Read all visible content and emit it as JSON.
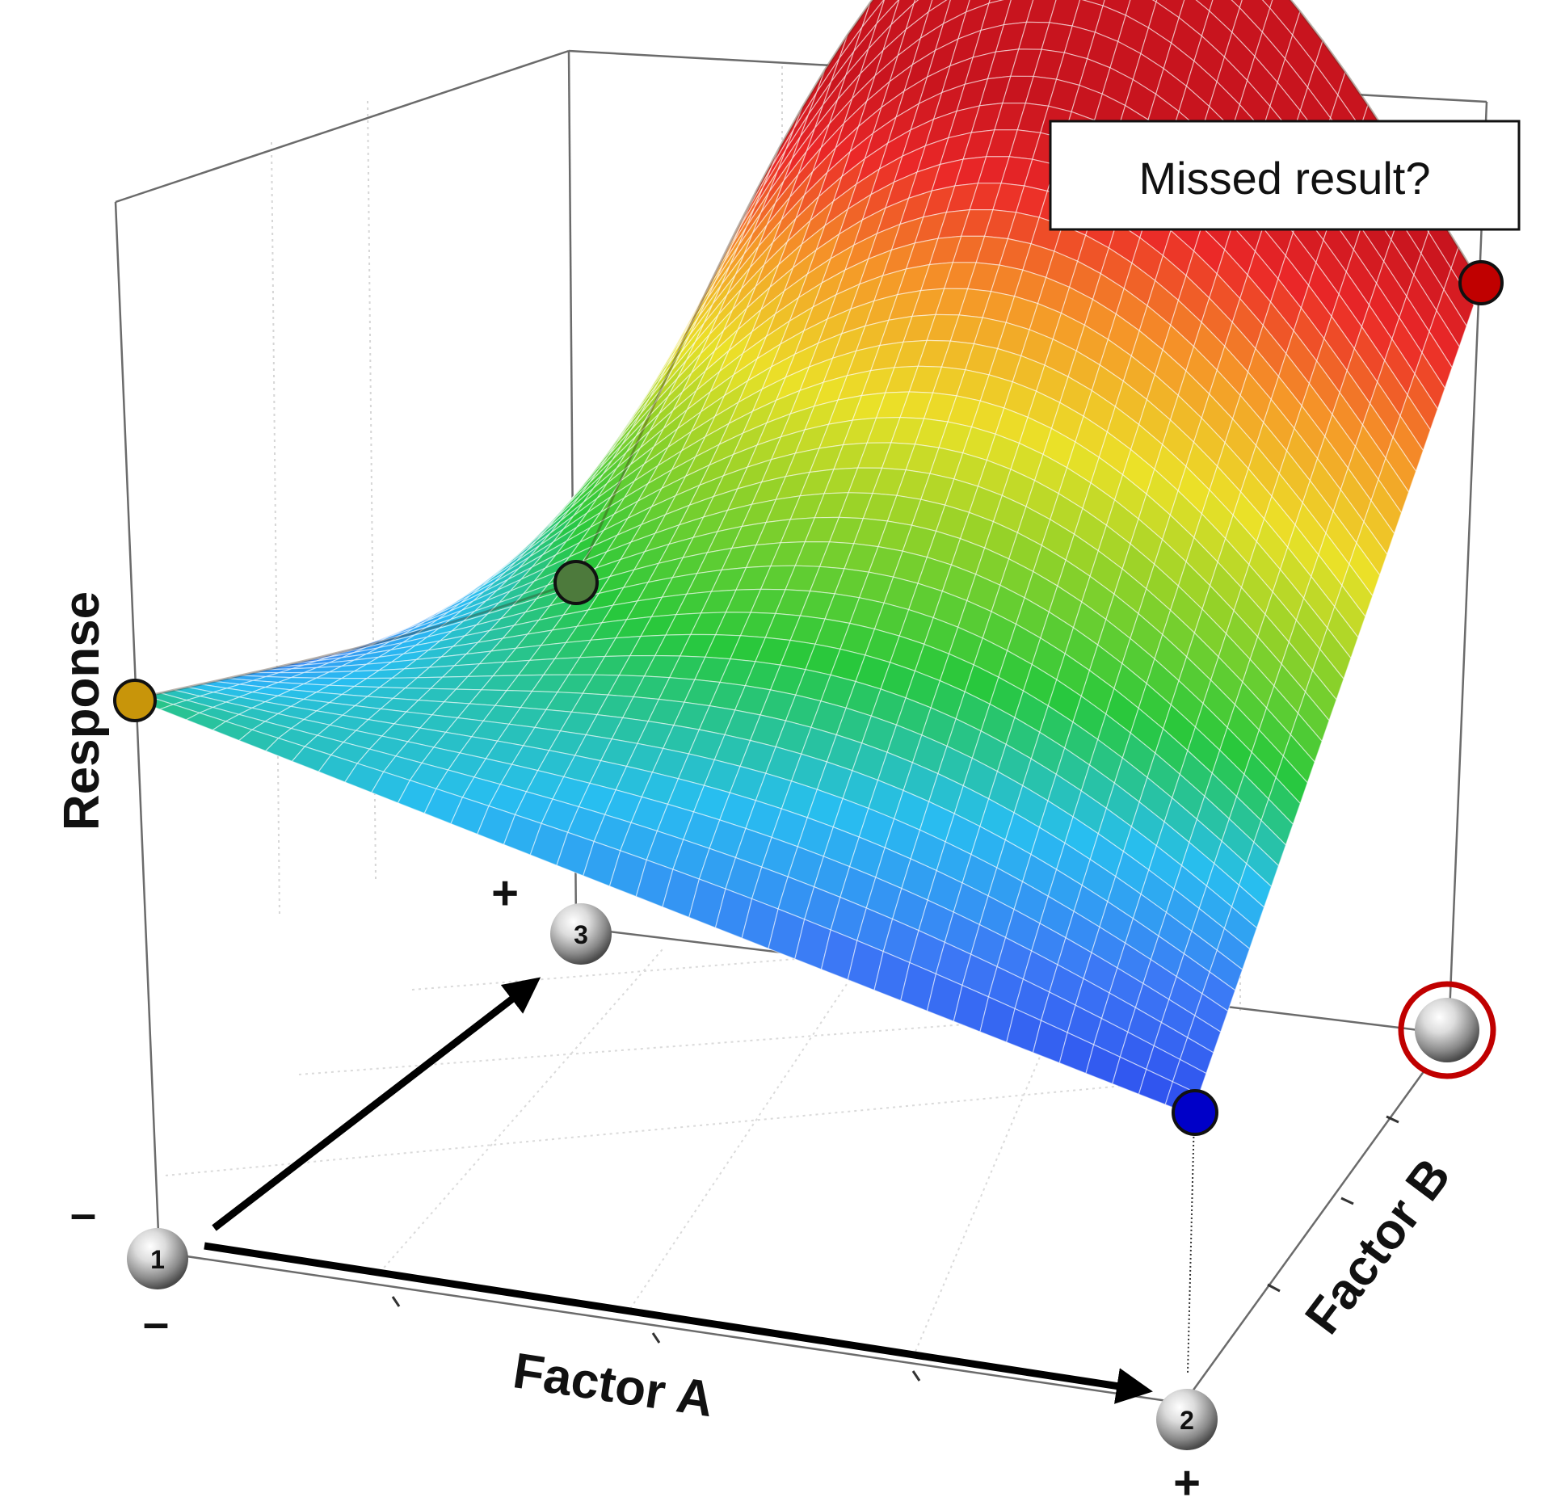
{
  "colors": {
    "point_left_face": "#c8950a",
    "point_back_left": "#4d7a3c",
    "point_top_right": "#c00000",
    "point_bottom_right": "#0000c8",
    "highlight_ring": "#c00000",
    "arrow": "#000000",
    "frame": "#6b6b6b"
  },
  "axes": {
    "x_title": "Factor A",
    "y_title": "Factor B",
    "z_title": "Response",
    "factor_a_low": "–",
    "factor_a_high": "+",
    "factor_b_low": "–",
    "factor_b_high": "+"
  },
  "annotation": {
    "text": "Missed result?"
  },
  "runs": [
    {
      "label": "1"
    },
    {
      "label": "2"
    },
    {
      "label": "3"
    },
    {
      "label": ""
    }
  ],
  "surface": {
    "colormap": [
      "blue",
      "cyan",
      "green",
      "yellow",
      "orange",
      "red"
    ]
  }
}
